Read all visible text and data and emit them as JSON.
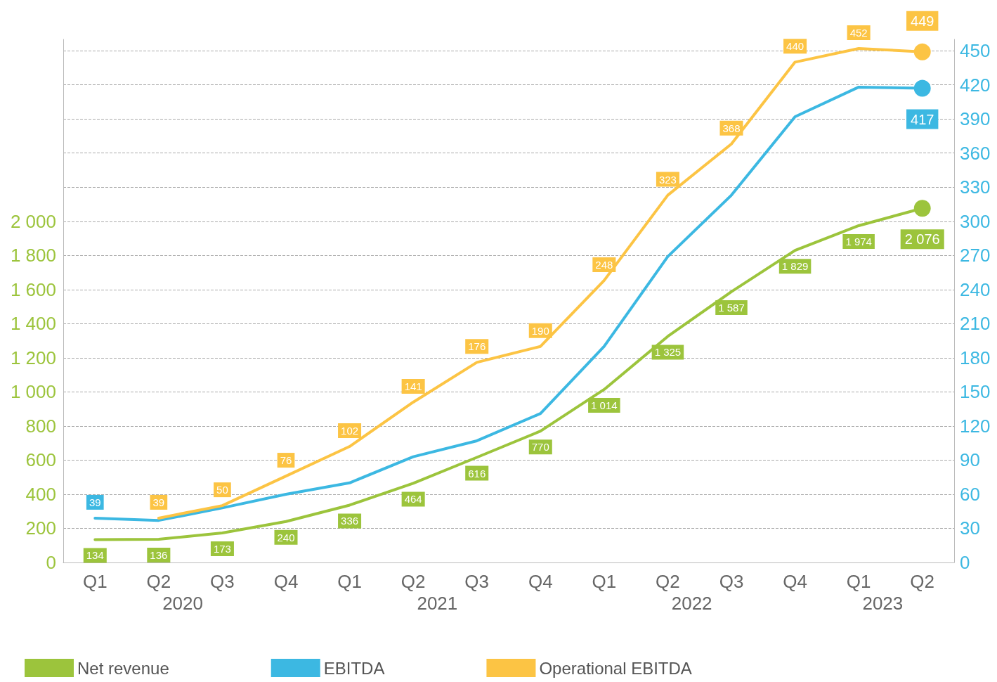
{
  "chart_data": {
    "type": "line",
    "categories": [
      "Q1",
      "Q2",
      "Q3",
      "Q4",
      "Q1",
      "Q2",
      "Q3",
      "Q4",
      "Q1",
      "Q2",
      "Q3",
      "Q4",
      "Q1",
      "Q2"
    ],
    "annotations": [
      "2020",
      "2021",
      "2022",
      "2023"
    ],
    "series": [
      {
        "name": "Net revenue",
        "color": "#9cc43c",
        "values": [
          134,
          136,
          173,
          240,
          336,
          464,
          616,
          770,
          1014,
          1325,
          1587,
          1829,
          1974,
          2076
        ],
        "value_labels": [
          "134",
          "136",
          "173",
          "240",
          "336",
          "464",
          "616",
          "770",
          "1 014",
          "1 325",
          "1 587",
          "1 829",
          "1 974",
          "2 076"
        ]
      },
      {
        "name": "EBITDA",
        "color": "#3cb8e2",
        "axis": "y2",
        "values": [
          39,
          37,
          48,
          60,
          70,
          93,
          107,
          131,
          190,
          269,
          323,
          392,
          418,
          417
        ],
        "value_labels": [
          "39",
          null,
          null,
          null,
          null,
          null,
          null,
          null,
          null,
          null,
          null,
          null,
          null,
          "417"
        ]
      },
      {
        "name": "Operational EBITDA",
        "color": "#fcc444",
        "axis": "y2",
        "values": [
          null,
          39,
          50,
          76,
          102,
          141,
          176,
          190,
          248,
          323,
          368,
          440,
          452,
          449
        ],
        "value_labels": [
          null,
          "39",
          "50",
          "76",
          "102",
          "141",
          "176",
          "190",
          "248",
          "323",
          "368",
          "440",
          "452",
          "449"
        ]
      }
    ],
    "ylim": [
      0,
      3066
    ],
    "yticks": [
      0,
      {
        "value": 200,
        "label": "200"
      },
      400,
      600,
      800,
      {
        "value": 1000,
        "label": "1 000"
      },
      {
        "value": 1200,
        "label": "1 200"
      },
      {
        "value": 1400,
        "label": "1 400"
      },
      {
        "value": 1600,
        "label": "1 600"
      },
      {
        "value": 1800,
        "label": "1 800"
      },
      {
        "value": 2000,
        "label": "2 000"
      }
    ],
    "y2lim": [
      0,
      460
    ],
    "y2ticks": [
      0,
      30,
      60,
      90,
      120,
      150,
      180,
      210,
      240,
      270,
      300,
      330,
      360,
      390,
      420,
      450
    ],
    "grid": "y",
    "legend": "bottom left",
    "line_style": "solid"
  }
}
